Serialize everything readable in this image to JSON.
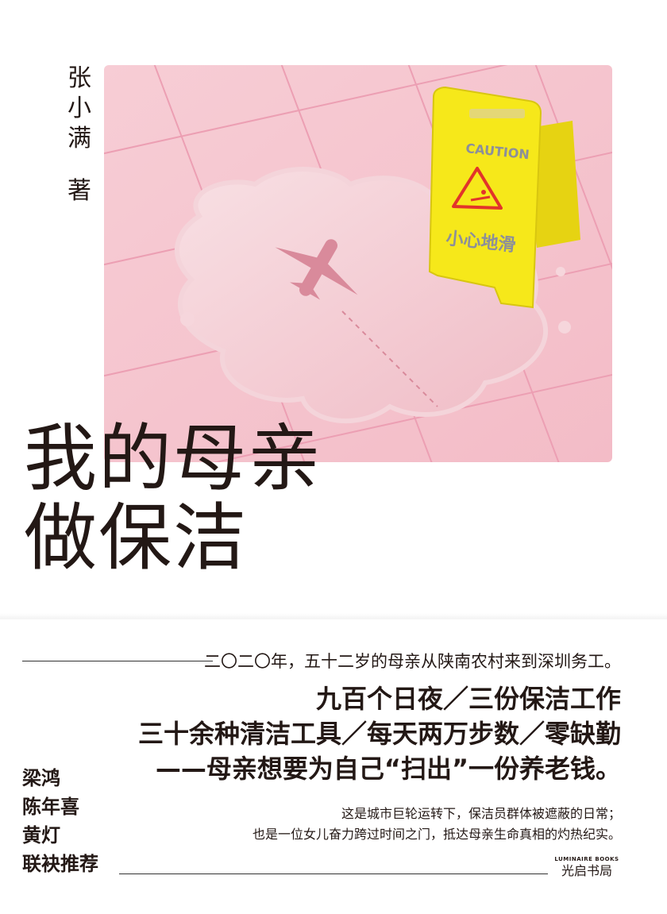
{
  "author": {
    "name_chars": [
      "张",
      "小",
      "满"
    ],
    "role": "著"
  },
  "cover_art": {
    "sign_text": "CAUTION",
    "sign_warning": "小心地滑",
    "colors": {
      "background": "#f6c9d1",
      "sign": "#f6e81a"
    }
  },
  "title": {
    "line1": "我的母亲",
    "line2": "做保洁"
  },
  "blurb": {
    "intro": "二〇二〇年，五十二岁的母亲从陕南农村来到深圳务工。",
    "headline": [
      "九百个日夜／三份保洁工作",
      "三十余种清洁工具／每天两万步数／零缺勤",
      "——母亲想要为自己“扫出”一份养老钱。"
    ],
    "description": [
      "这是城市巨轮运转下，保洁员群体被遮蔽的日常；",
      "也是一位女儿奋力跨过时间之门，抵达母亲生命真相的灼热纪实。"
    ]
  },
  "recommenders": [
    "梁鸿",
    "陈年喜",
    "黄灯",
    "联袂推荐"
  ],
  "publisher": {
    "en": "LUMINAIRE BOOKS",
    "zh": "光启书局"
  }
}
